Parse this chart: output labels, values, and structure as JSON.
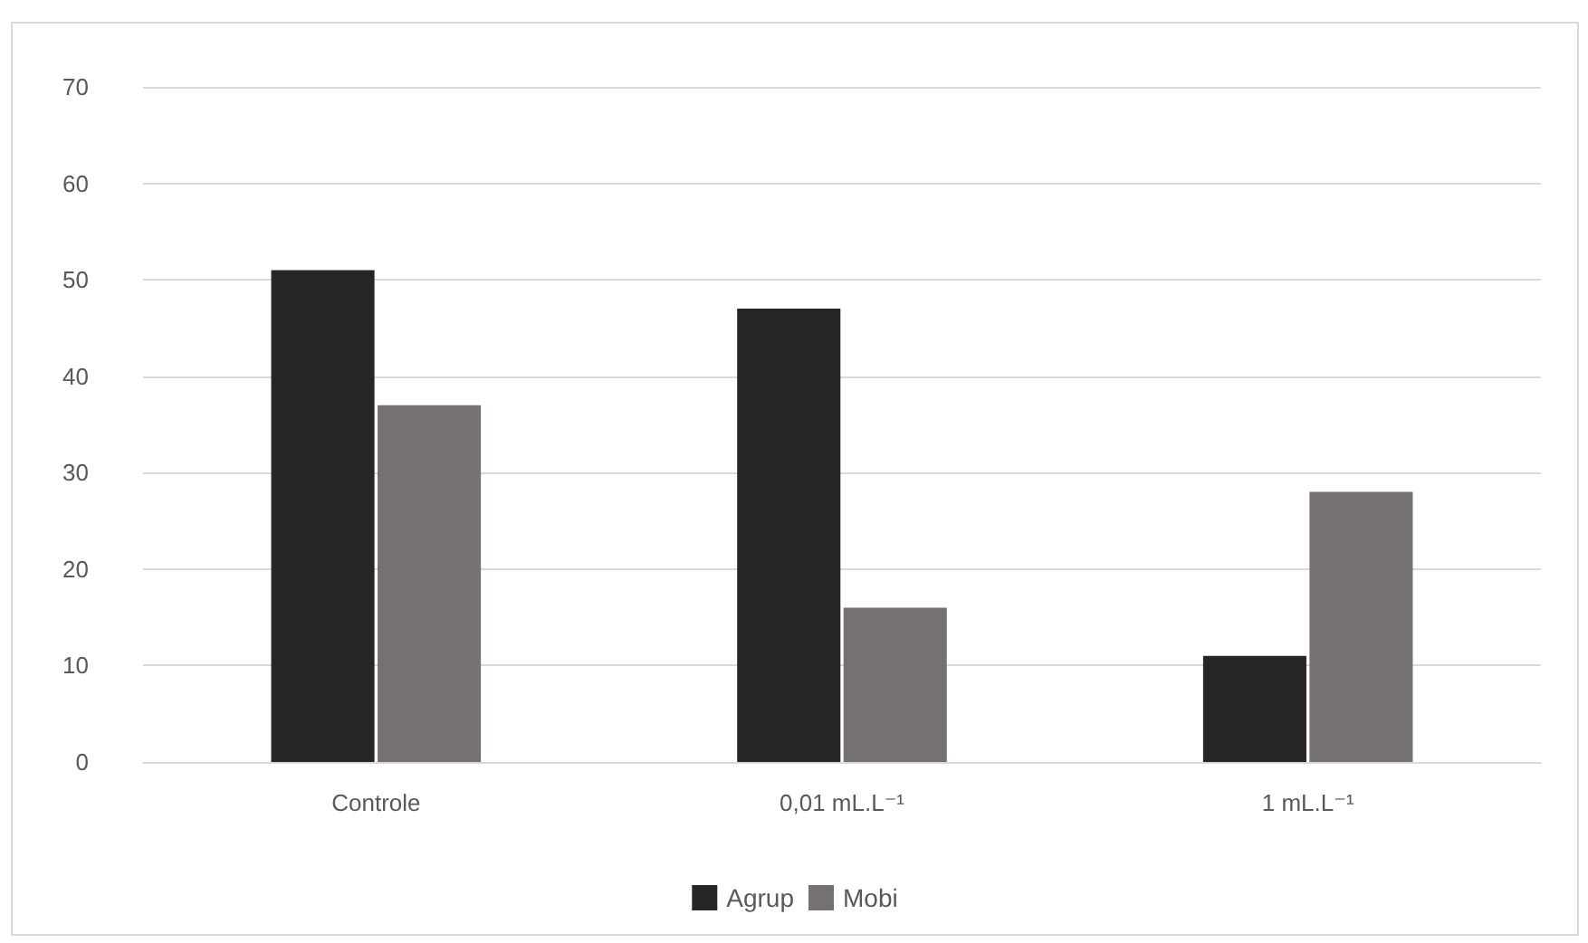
{
  "chart_data": {
    "type": "bar",
    "categories": [
      "Controle",
      "0,01 mL.L⁻¹",
      "1 mL.L⁻¹"
    ],
    "series": [
      {
        "name": "Agrup",
        "color": "#262626",
        "values": [
          51,
          47,
          11
        ]
      },
      {
        "name": "Mobi",
        "color": "#767171",
        "values": [
          37,
          16,
          28
        ]
      }
    ],
    "ylim": [
      0,
      70
    ],
    "yticks": [
      0,
      10,
      20,
      30,
      40,
      50,
      60,
      70
    ],
    "grid": "y",
    "legend": "bottom"
  }
}
